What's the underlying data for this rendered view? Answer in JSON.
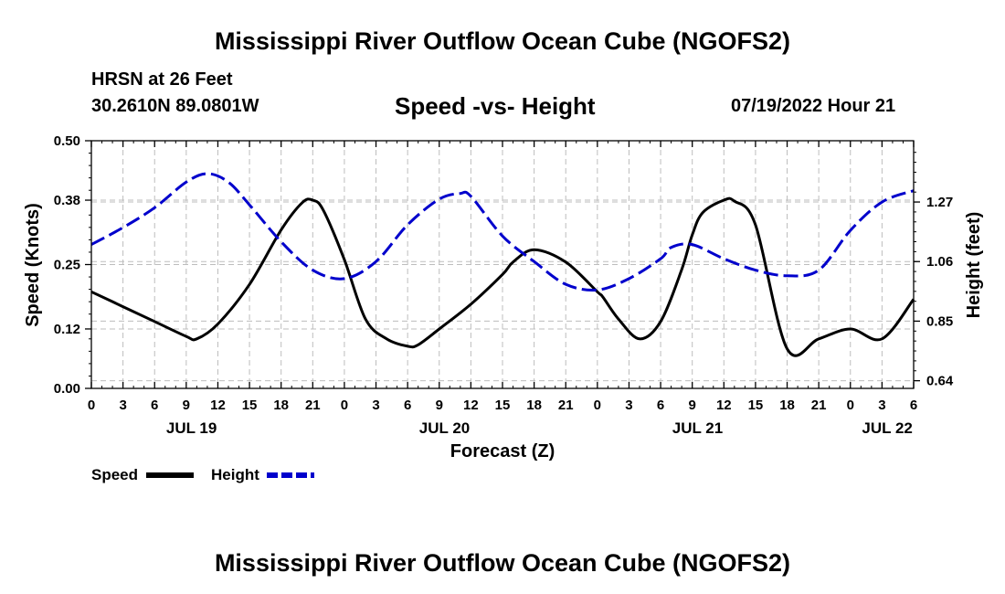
{
  "header": {
    "title": "Mississippi River Outflow Ocean Cube (NGOFS2)",
    "station": "HRSN at 26 Feet",
    "coords": "30.2610N  89.0801W",
    "subtitle": "Speed -vs- Height",
    "datetime": "07/19/2022 Hour 21",
    "footer_title": "Mississippi River Outflow Ocean Cube (NGOFS2)"
  },
  "chart_data": {
    "type": "line",
    "title": "Speed -vs- Height",
    "xlabel": "Forecast (Z)",
    "ylabel": "Speed (Knots)",
    "y2label": "Height (feet)",
    "xlim": [
      0,
      78
    ],
    "ylim": [
      0,
      0.5
    ],
    "y2lim": [
      0.613,
      1.486
    ],
    "grid": true,
    "x_tick_values": [
      0,
      3,
      6,
      9,
      12,
      15,
      18,
      21,
      24,
      27,
      30,
      33,
      36,
      39,
      42,
      45,
      48,
      51,
      54,
      57,
      60,
      63,
      66,
      69,
      72,
      75,
      78
    ],
    "x_tick_labels": [
      "0",
      "3",
      "6",
      "9",
      "12",
      "15",
      "18",
      "21",
      "0",
      "3",
      "6",
      "9",
      "12",
      "15",
      "18",
      "21",
      "0",
      "3",
      "6",
      "9",
      "12",
      "15",
      "18",
      "21",
      "0",
      "3",
      "6"
    ],
    "date_labels": [
      {
        "label": "JUL 19",
        "at": 9.5
      },
      {
        "label": "JUL 20",
        "at": 33.5
      },
      {
        "label": "JUL 21",
        "at": 57.5
      },
      {
        "label": "JUL 22",
        "at": 75.5
      }
    ],
    "y_ticks": [
      0.0,
      0.12,
      0.25,
      0.38,
      0.5
    ],
    "y_tick_labels": [
      "0.00",
      "0.12",
      "0.25",
      "0.38",
      "0.50"
    ],
    "y2_ticks": [
      0.64,
      0.85,
      1.06,
      1.27
    ],
    "y2_tick_labels": [
      "0.64",
      "0.85",
      "1.06",
      "1.27"
    ],
    "series": [
      {
        "name": "Speed",
        "axis": "left",
        "color": "#000000",
        "style": "solid",
        "x": [
          0,
          3,
          6,
          9,
          10,
          12,
          15,
          18,
          20,
          21,
          22,
          24,
          26,
          28,
          30,
          31,
          33,
          36,
          39,
          40,
          42,
          45,
          48,
          48.5,
          50,
          52,
          54,
          56,
          57,
          58,
          60,
          61,
          63,
          66,
          69,
          72,
          75,
          78
        ],
        "values": [
          0.195,
          0.165,
          0.135,
          0.105,
          0.1,
          0.13,
          0.21,
          0.32,
          0.375,
          0.38,
          0.36,
          0.26,
          0.14,
          0.1,
          0.085,
          0.088,
          0.12,
          0.17,
          0.23,
          0.255,
          0.28,
          0.255,
          0.195,
          0.185,
          0.14,
          0.1,
          0.135,
          0.24,
          0.31,
          0.355,
          0.38,
          0.378,
          0.33,
          0.08,
          0.1,
          0.12,
          0.1,
          0.18
        ]
      },
      {
        "name": "Height",
        "axis": "right",
        "color": "#0000cc",
        "style": "dashed",
        "x": [
          0,
          3,
          6,
          9,
          11,
          13,
          15,
          18,
          21,
          24,
          27,
          30,
          33,
          35,
          36,
          39,
          42,
          45,
          48,
          51,
          54,
          55,
          57,
          60,
          63,
          66,
          69,
          72,
          75,
          78
        ],
        "values": [
          1.12,
          1.18,
          1.25,
          1.34,
          1.37,
          1.34,
          1.26,
          1.13,
          1.03,
          1.0,
          1.06,
          1.19,
          1.28,
          1.3,
          1.29,
          1.15,
          1.06,
          0.98,
          0.96,
          1.0,
          1.07,
          1.11,
          1.12,
          1.07,
          1.03,
          1.01,
          1.03,
          1.17,
          1.27,
          1.31
        ]
      }
    ],
    "legend": {
      "placement": "bottom-left",
      "items": [
        "Speed",
        "Height"
      ]
    }
  }
}
